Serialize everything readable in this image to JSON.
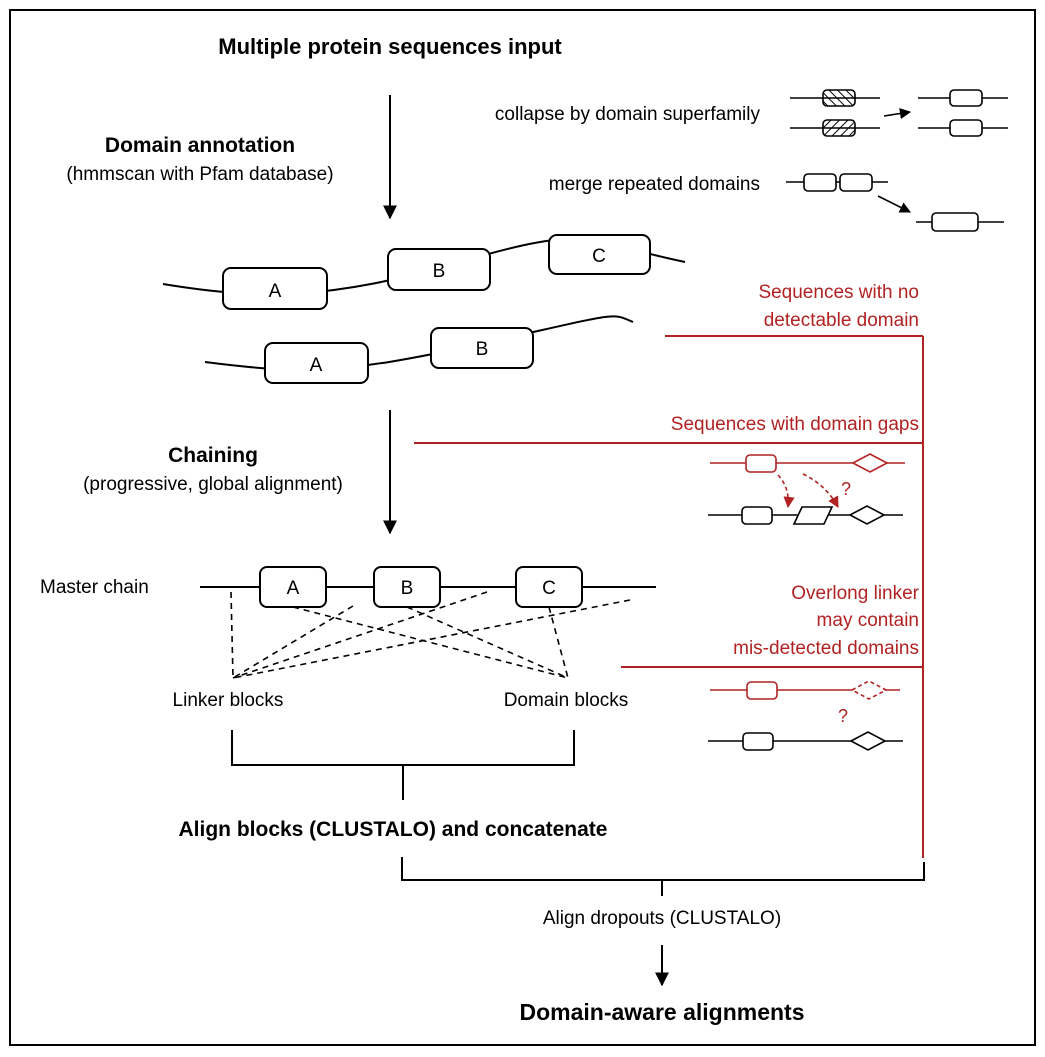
{
  "title": "Multiple protein sequences input",
  "steps": {
    "annotation": {
      "title": "Domain annotation",
      "subtitle": "(hmmscan with Pfam database)"
    },
    "chaining": {
      "title": "Chaining",
      "subtitle": "(progressive, global alignment)"
    },
    "align_blocks": "Align blocks (CLUSTALO) and concatenate",
    "align_dropouts": "Align dropouts (CLUSTALO)",
    "output": "Domain-aware alignments"
  },
  "preprocessing": {
    "collapse": "collapse by domain superfamily",
    "merge": "merge repeated domains"
  },
  "domains": {
    "seq1": [
      "A",
      "B",
      "C"
    ],
    "seq2": [
      "A",
      "B"
    ],
    "master": [
      "A",
      "B",
      "C"
    ]
  },
  "chain": {
    "master_label": "Master chain",
    "linker_label": "Linker blocks",
    "domain_label": "Domain blocks"
  },
  "dropouts": {
    "no_domain": [
      "Sequences with no",
      "detectable domain"
    ],
    "domain_gaps": "Sequences with domain gaps",
    "overlong": [
      "Overlong linker",
      "may contain",
      "mis-detected domains"
    ],
    "question_mark": "?"
  },
  "colors": {
    "dropout": "#b22222",
    "ink": "#000000",
    "background": "#ffffff"
  }
}
